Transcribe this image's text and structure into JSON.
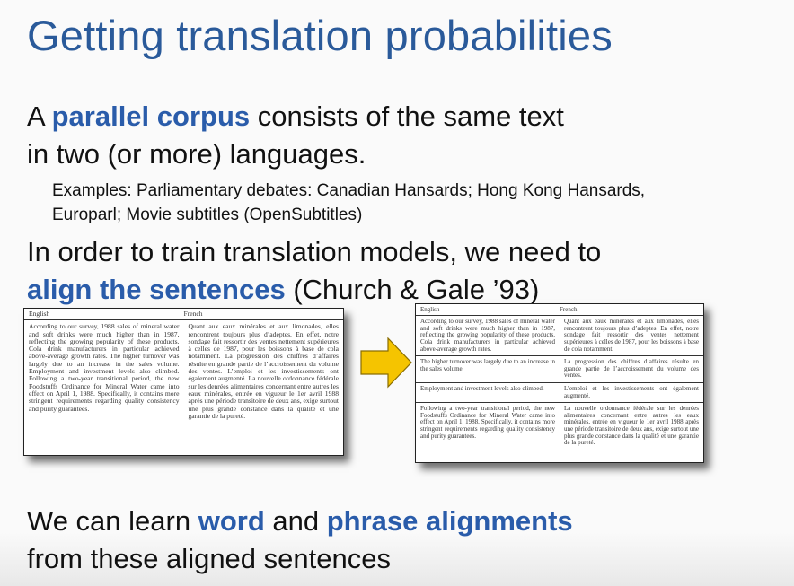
{
  "title": "Getting translation probabilities",
  "para1": {
    "pre": "A ",
    "highlight": "parallel corpus",
    "post": " consists of the same text",
    "line2": "in two (or more) languages."
  },
  "examples": {
    "line1": "Examples: Parliamentary debates: Canadian Hansards; Hong Kong Hansards,",
    "line2": "Europarl; Movie subtitles (OpenSubtitles)"
  },
  "para2": {
    "line1": "In order to train translation models, we need to",
    "highlight": "align the sentences",
    "post": " (Church & Gale ’93)"
  },
  "doc_unaligned": {
    "header_en": "English",
    "header_fr": "French",
    "english": "According to our survey, 1988 sales of mineral water and soft drinks were much higher than in 1987, reflecting the growing popularity of these products. Cola drink manufacturers in particular achieved above-average growth rates. The higher turnover was largely due to an increase in the sales volume. Employment and investment levels also climbed. Following a two-year transitional period, the new Foodstuffs Ordinance for Mineral Water came into effect on April 1, 1988. Specifically, it contains more stringent requirements regarding quality consistency and purity guarantees.",
    "french": "Quant aux eaux minérales et aux limonades, elles rencontrent toujours plus d’adeptes. En effet, notre sondage fait ressortir des ventes nettement supérieures à celles de 1987, pour les boissons à base de cola notamment. La progression des chiffres d’affaires résulte en grande partie de l’accroissement du volume des ventes. L’emploi et les investissements ont également augmenté. La nouvelle ordonnance fédérale sur les denrées alimentaires concernant entre autres les eaux minérales, entrée en vigueur le 1er avril 1988 après une période transitoire de deux ans, exige surtout une plus grande constance dans la qualité et une garantie de la pureté."
  },
  "doc_aligned": {
    "header_en": "English",
    "header_fr": "French",
    "rows": [
      {
        "en": "According to our survey, 1988 sales of mineral water and soft drinks were much higher than in 1987, reflecting the growing popularity of these products. Cola drink manufacturers in particular achieved above-average growth rates.",
        "fr": "Quant aux eaux minérales et aux limonades, elles rencontrent toujours plus d’adeptes. En effet, notre sondage fait ressortir des ventes nettement supérieures à celles de 1987, pour les boissons à base de cola notamment."
      },
      {
        "en": "The higher turnover was largely due to an increase in the sales volume.",
        "fr": "La progression des chiffres d’affaires résulte en grande partie de l’accroissement du volume des ventes."
      },
      {
        "en": "Employment and investment levels also climbed.",
        "fr": "L’emploi et les investissements ont également augmenté."
      },
      {
        "en": "Following a two-year transitional period, the new Foodstuffs Ordinance for Mineral Water came into effect on April 1, 1988. Specifically, it contains more stringent requirements regarding quality consistency and purity guarantees.",
        "fr": "La nouvelle ordonnance fédérale sur les denrées alimentaires concernant entre autres les eaux minérales, entrée en vigueur le 1er avril 1988 après une période transitoire de deux ans, exige surtout une plus grande constance dans la qualité et une garantie de la pureté."
      }
    ]
  },
  "arrow_color": "#f5c400",
  "para3": {
    "pre": "We can learn ",
    "hl1": "word",
    "mid": " and ",
    "hl2": "phrase alignments",
    "line2": "from these aligned sentences"
  }
}
